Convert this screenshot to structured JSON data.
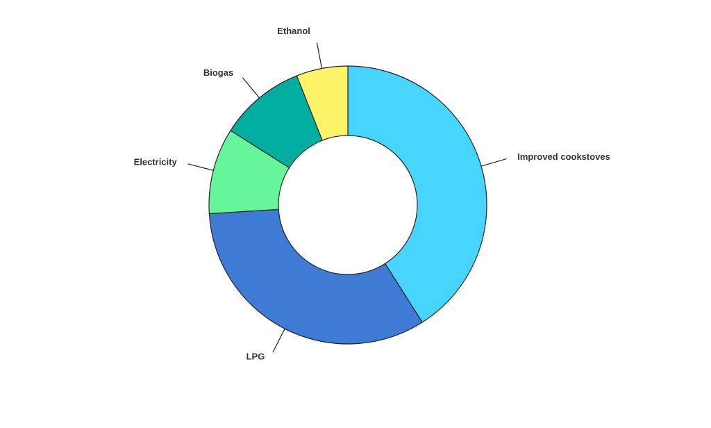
{
  "chart_data": {
    "type": "donut",
    "categories": [
      "Improved cookstoves",
      "LPG",
      "Electricity",
      "Biogas",
      "Ethanol"
    ],
    "values": [
      41,
      33,
      10,
      10,
      6
    ],
    "colors": [
      "#48d5fd",
      "#3d7bd4",
      "#66f59a",
      "#00ad9f",
      "#fef46a"
    ]
  }
}
